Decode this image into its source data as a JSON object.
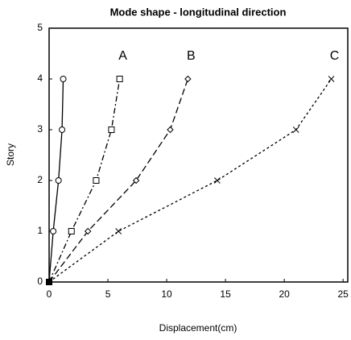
{
  "chart_data": {
    "type": "line",
    "title": "Mode shape - longitudinal direction",
    "x_label": "Displacement(cm)",
    "y_label": "Story",
    "xlim": [
      0,
      25.4
    ],
    "xticks": [
      0,
      5,
      10,
      15,
      20,
      25
    ],
    "ylim": [
      0,
      5
    ],
    "yticks": [
      0,
      1,
      2,
      3,
      4,
      5
    ],
    "grid": false,
    "series": [
      {
        "color": "#000000",
        "marker": "circle",
        "dash": "solid",
        "x": [
          0,
          0.35,
          0.8,
          1.1,
          1.2
        ],
        "values": [
          0,
          1,
          2,
          3,
          4
        ]
      },
      {
        "name": "A",
        "color": "#000000",
        "marker": "square",
        "dash": "dashdot",
        "x": [
          0,
          1.9,
          4.0,
          5.3,
          6.0
        ],
        "values": [
          0,
          1,
          2,
          3,
          4
        ]
      },
      {
        "name": "B",
        "color": "#000000",
        "marker": "diamond",
        "dash": "dashed",
        "x": [
          0,
          3.3,
          7.4,
          10.3,
          11.8
        ],
        "values": [
          0,
          1,
          2,
          3,
          4
        ]
      },
      {
        "name": "C",
        "color": "#000000",
        "marker": "x",
        "dash": "dotted",
        "x": [
          0,
          5.9,
          14.3,
          21.0,
          24.0
        ],
        "values": [
          0,
          1,
          2,
          3,
          4
        ]
      }
    ]
  }
}
